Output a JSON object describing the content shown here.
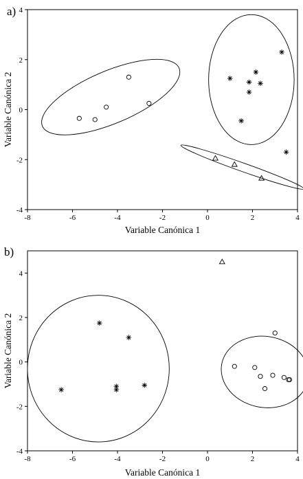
{
  "chart_data": [
    {
      "type": "scatter",
      "panel_label": "a)",
      "xlabel": "Variable Canónica 1",
      "ylabel": "Variable Canónica 2",
      "xlim": [
        -8,
        4
      ],
      "ylim": [
        -4,
        4
      ],
      "xticks": [
        -8,
        -6,
        -4,
        -2,
        0,
        2,
        4
      ],
      "yticks": [
        -4,
        -2,
        0,
        2,
        4
      ],
      "series": [
        {
          "marker": "circle",
          "points": [
            [
              -5.7,
              -0.35
            ],
            [
              -5.0,
              -0.4
            ],
            [
              -4.5,
              0.1
            ],
            [
              -3.5,
              1.3
            ],
            [
              -2.6,
              0.25
            ]
          ],
          "ellipse": {
            "cx": -4.3,
            "cy": 0.5,
            "rx": 3.3,
            "ry": 1.05,
            "angle": 23
          }
        },
        {
          "marker": "asterisk",
          "points": [
            [
              1.0,
              1.25
            ],
            [
              1.85,
              1.1
            ],
            [
              2.15,
              1.5
            ],
            [
              2.35,
              1.05
            ],
            [
              1.85,
              0.7
            ],
            [
              1.5,
              -0.45
            ],
            [
              3.3,
              2.3
            ],
            [
              3.5,
              -1.7
            ]
          ],
          "ellipse": {
            "cx": 1.95,
            "cy": 1.2,
            "rx": 1.9,
            "ry": 2.6,
            "angle": 0
          }
        },
        {
          "marker": "triangle",
          "points": [
            [
              0.35,
              -1.95
            ],
            [
              1.2,
              -2.2
            ],
            [
              2.4,
              -2.75
            ]
          ],
          "ellipse": {
            "cx": 1.55,
            "cy": -2.3,
            "rx": 2.9,
            "ry": 0.17,
            "angle": -19.5
          }
        }
      ]
    },
    {
      "type": "scatter",
      "panel_label": "b)",
      "xlabel": "Variable Canónica 1",
      "ylabel": "Variable Canónica 2",
      "xlim": [
        -8,
        4
      ],
      "ylim": [
        -4,
        5
      ],
      "xticks": [
        -8,
        -6,
        -4,
        -2,
        0,
        2,
        4
      ],
      "yticks": [
        -4,
        -2,
        0,
        2,
        4
      ],
      "series": [
        {
          "marker": "asterisk",
          "points": [
            [
              -6.5,
              -1.25
            ],
            [
              -4.8,
              1.75
            ],
            [
              -4.05,
              -1.1
            ],
            [
              -4.05,
              -1.25
            ],
            [
              -3.5,
              1.1
            ],
            [
              -2.8,
              -1.05
            ]
          ],
          "ellipse": {
            "cx": -4.85,
            "cy": -0.3,
            "rx": 3.15,
            "ry": 3.3,
            "angle": 0
          }
        },
        {
          "marker": "circle",
          "points": [
            [
              1.2,
              -0.2
            ],
            [
              2.1,
              -0.25
            ],
            [
              2.35,
              -0.65
            ],
            [
              2.55,
              -1.2
            ],
            [
              2.9,
              -0.6
            ],
            [
              3.0,
              1.3
            ],
            [
              3.4,
              -0.7
            ],
            [
              3.6,
              -0.8
            ],
            [
              3.65,
              -0.8
            ]
          ],
          "ellipse": {
            "cx": 2.55,
            "cy": -0.45,
            "rx": 1.95,
            "ry": 1.6,
            "angle": -10
          }
        },
        {
          "marker": "triangle",
          "points": [
            [
              0.65,
              4.5
            ]
          ],
          "ellipse": null
        }
      ]
    }
  ]
}
